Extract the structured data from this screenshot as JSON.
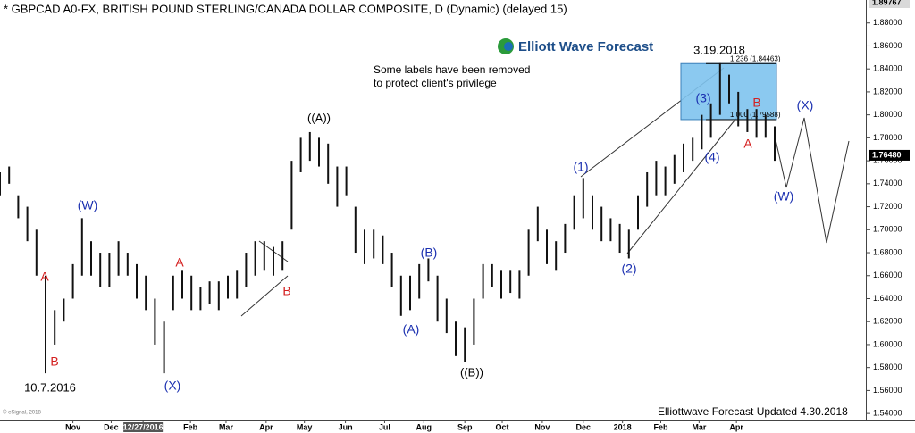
{
  "chart_data": {
    "type": "range-bar",
    "title": "* GBPCAD A0-FX, BRITISH POUND STERLING/CANADA DOLLAR COMPOSITE, D (Dynamic) (delayed 15)",
    "logo": "Elliott Wave Forecast",
    "note": [
      "Some labels have been removed",
      "to protect client's privilege"
    ],
    "footer": "Elliottwave Forecast Updated 4.30.2018",
    "copyright": "© eSignal, 2018",
    "bar_color": "#111111",
    "x": [
      0,
      1,
      2,
      3,
      4,
      5,
      6,
      7,
      8,
      9,
      10,
      11,
      12,
      13,
      14,
      15,
      16,
      17,
      18,
      19,
      20,
      21,
      22,
      23,
      24,
      25,
      26,
      27,
      28,
      29,
      30,
      31,
      32,
      33,
      34,
      35,
      36,
      37,
      38,
      39,
      40,
      41,
      42,
      43,
      44,
      45,
      46,
      47,
      48,
      49,
      50,
      51,
      52,
      53,
      54,
      55,
      56,
      57,
      58,
      59,
      60,
      61,
      62,
      63,
      64,
      65,
      66,
      67,
      68,
      69,
      70,
      71,
      72,
      73,
      74,
      75,
      76,
      77,
      78,
      79,
      80,
      81,
      82,
      83,
      84,
      85
    ],
    "high": [
      1.75,
      1.755,
      1.73,
      1.72,
      1.7,
      1.66,
      1.63,
      1.64,
      1.67,
      1.71,
      1.69,
      1.68,
      1.68,
      1.69,
      1.68,
      1.67,
      1.66,
      1.64,
      1.62,
      1.66,
      1.665,
      1.66,
      1.65,
      1.655,
      1.655,
      1.66,
      1.665,
      1.68,
      1.69,
      1.69,
      1.685,
      1.69,
      1.76,
      1.78,
      1.785,
      1.78,
      1.775,
      1.755,
      1.755,
      1.72,
      1.7,
      1.7,
      1.695,
      1.68,
      1.66,
      1.66,
      1.67,
      1.675,
      1.66,
      1.64,
      1.62,
      1.615,
      1.64,
      1.67,
      1.67,
      1.665,
      1.665,
      1.665,
      1.7,
      1.72,
      1.7,
      1.69,
      1.705,
      1.73,
      1.745,
      1.73,
      1.72,
      1.71,
      1.705,
      1.7,
      1.73,
      1.75,
      1.76,
      1.755,
      1.765,
      1.775,
      1.78,
      1.8,
      1.81,
      1.845,
      1.835,
      1.82,
      1.805,
      1.805,
      1.8,
      1.79
    ],
    "low": [
      1.73,
      1.74,
      1.71,
      1.69,
      1.66,
      1.575,
      1.6,
      1.62,
      1.64,
      1.66,
      1.66,
      1.65,
      1.65,
      1.66,
      1.66,
      1.64,
      1.63,
      1.6,
      1.575,
      1.63,
      1.64,
      1.63,
      1.63,
      1.635,
      1.63,
      1.64,
      1.64,
      1.65,
      1.66,
      1.665,
      1.66,
      1.665,
      1.7,
      1.75,
      1.76,
      1.755,
      1.74,
      1.72,
      1.73,
      1.68,
      1.67,
      1.675,
      1.67,
      1.65,
      1.625,
      1.63,
      1.64,
      1.655,
      1.62,
      1.61,
      1.59,
      1.585,
      1.6,
      1.64,
      1.65,
      1.64,
      1.645,
      1.64,
      1.66,
      1.69,
      1.67,
      1.665,
      1.68,
      1.7,
      1.71,
      1.7,
      1.69,
      1.69,
      1.68,
      1.675,
      1.7,
      1.72,
      1.73,
      1.73,
      1.74,
      1.75,
      1.76,
      1.77,
      1.78,
      1.8,
      1.81,
      1.79,
      1.785,
      1.78,
      1.78,
      1.76
    ],
    "xlim": [
      0,
      95
    ],
    "ylim": [
      1.53,
      1.9
    ],
    "xticks": [
      {
        "value": 8.0,
        "label": "Nov"
      },
      {
        "value": 12.2,
        "label": "Dec"
      },
      {
        "value": 15.7,
        "label": "12/27/2016",
        "highlight": true
      },
      {
        "value": 20.9,
        "label": "Feb"
      },
      {
        "value": 24.8,
        "label": "Mar"
      },
      {
        "value": 29.2,
        "label": "Apr"
      },
      {
        "value": 33.4,
        "label": "May"
      },
      {
        "value": 37.9,
        "label": "Jun"
      },
      {
        "value": 42.2,
        "label": "Jul"
      },
      {
        "value": 46.5,
        "label": "Aug"
      },
      {
        "value": 51.0,
        "label": "Sep"
      },
      {
        "value": 55.1,
        "label": "Oct"
      },
      {
        "value": 59.5,
        "label": "Nov"
      },
      {
        "value": 64.0,
        "label": "Dec"
      },
      {
        "value": 68.3,
        "label": "2018"
      },
      {
        "value": 72.5,
        "label": "Feb"
      },
      {
        "value": 76.7,
        "label": "Mar"
      },
      {
        "value": 80.8,
        "label": "Apr"
      }
    ],
    "yticks": [
      {
        "value": 1.54,
        "label": "1.54000"
      },
      {
        "value": 1.56,
        "label": "1.56000"
      },
      {
        "value": 1.58,
        "label": "1.58000"
      },
      {
        "value": 1.6,
        "label": "1.60000"
      },
      {
        "value": 1.62,
        "label": "1.62000"
      },
      {
        "value": 1.64,
        "label": "1.64000"
      },
      {
        "value": 1.66,
        "label": "1.66000"
      },
      {
        "value": 1.68,
        "label": "1.68000"
      },
      {
        "value": 1.7,
        "label": "1.70000"
      },
      {
        "value": 1.72,
        "label": "1.72000"
      },
      {
        "value": 1.74,
        "label": "1.74000"
      },
      {
        "value": 1.76,
        "label": "1.76000"
      },
      {
        "value": 1.78,
        "label": "1.78000"
      },
      {
        "value": 1.8,
        "label": "1.80000"
      },
      {
        "value": 1.82,
        "label": "1.82000"
      },
      {
        "value": 1.84,
        "label": "1.84000"
      },
      {
        "value": 1.86,
        "label": "1.86000"
      },
      {
        "value": 1.88,
        "label": "1.88000"
      }
    ],
    "price_labels": [
      {
        "value": 1.89767,
        "label": "1.89767",
        "bg": "#d9d9d9",
        "fg": "#000000"
      },
      {
        "value": 1.7648,
        "label": "1.76480",
        "bg": "#000000",
        "fg": "#ffffff"
      }
    ],
    "fib_levels": [
      {
        "value": 1.84463,
        "label": "1.236 (1.84463)"
      },
      {
        "value": 1.79588,
        "label": "1.000 (1.79588)"
      }
    ],
    "box_color": "#7ec3ee",
    "annotations": [
      {
        "text": "A",
        "color": "#d42020"
      },
      {
        "text": "B",
        "color": "#d42020"
      },
      {
        "text": "10.7.2016",
        "color": "#000000"
      },
      {
        "text": "(W)",
        "color": "#1a2fb0"
      },
      {
        "text": "A",
        "color": "#d42020"
      },
      {
        "text": "(X)",
        "color": "#1a2fb0"
      },
      {
        "text": "B",
        "color": "#d42020"
      },
      {
        "text": "((A))",
        "color": "#000000"
      },
      {
        "text": "(B)",
        "color": "#1a2fb0"
      },
      {
        "text": "(A)",
        "color": "#1a2fb0"
      },
      {
        "text": "((B))",
        "color": "#000000"
      },
      {
        "text": "(1)",
        "color": "#1a2fb0"
      },
      {
        "text": "(2)",
        "color": "#1a2fb0"
      },
      {
        "text": "(3)",
        "color": "#1a2fb0"
      },
      {
        "text": "(4)",
        "color": "#1a2fb0"
      },
      {
        "text": "A",
        "color": "#d42020"
      },
      {
        "text": "B",
        "color": "#d42020"
      },
      {
        "text": "(X)",
        "color": "#1a2fb0"
      },
      {
        "text": "(W)",
        "color": "#1a2fb0"
      },
      {
        "text": "3.19.2018",
        "color": "#000000"
      }
    ]
  }
}
